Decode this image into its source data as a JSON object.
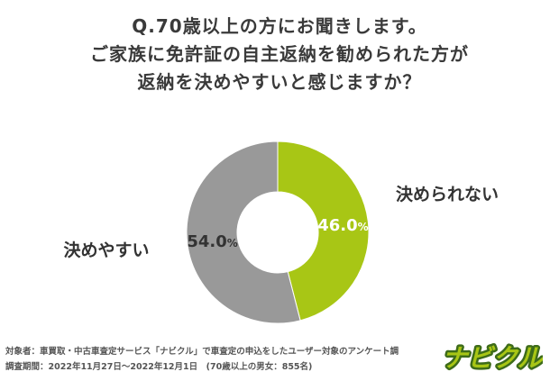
{
  "title_lines": [
    "Q.70歳以上の方にお聞きします。",
    "ご家族に免許証の自主返納を勧められた方が",
    "返納を決めやすいと感じますか？"
  ],
  "chart_data": {
    "type": "pie",
    "donut": true,
    "unit": "%",
    "slices": [
      {
        "label": "決められない",
        "value": 46.0,
        "display": "46.0",
        "color": "#a8c615"
      },
      {
        "label": "決めやすい",
        "value": 54.0,
        "display": "54.0",
        "color": "#999999"
      }
    ]
  },
  "footer": {
    "line1": "対象者：車買取・中古車査定サービス「ナビクル」で車査定の申込をしたユーザー対象のアンケート調",
    "line2": "調査期間：2022年11月27日〜2022年12月1日　(70歳以上の男女：855名)"
  },
  "logo": {
    "text": "ナビクル",
    "color": "#a8c615",
    "outline": "#3d6b1a"
  }
}
